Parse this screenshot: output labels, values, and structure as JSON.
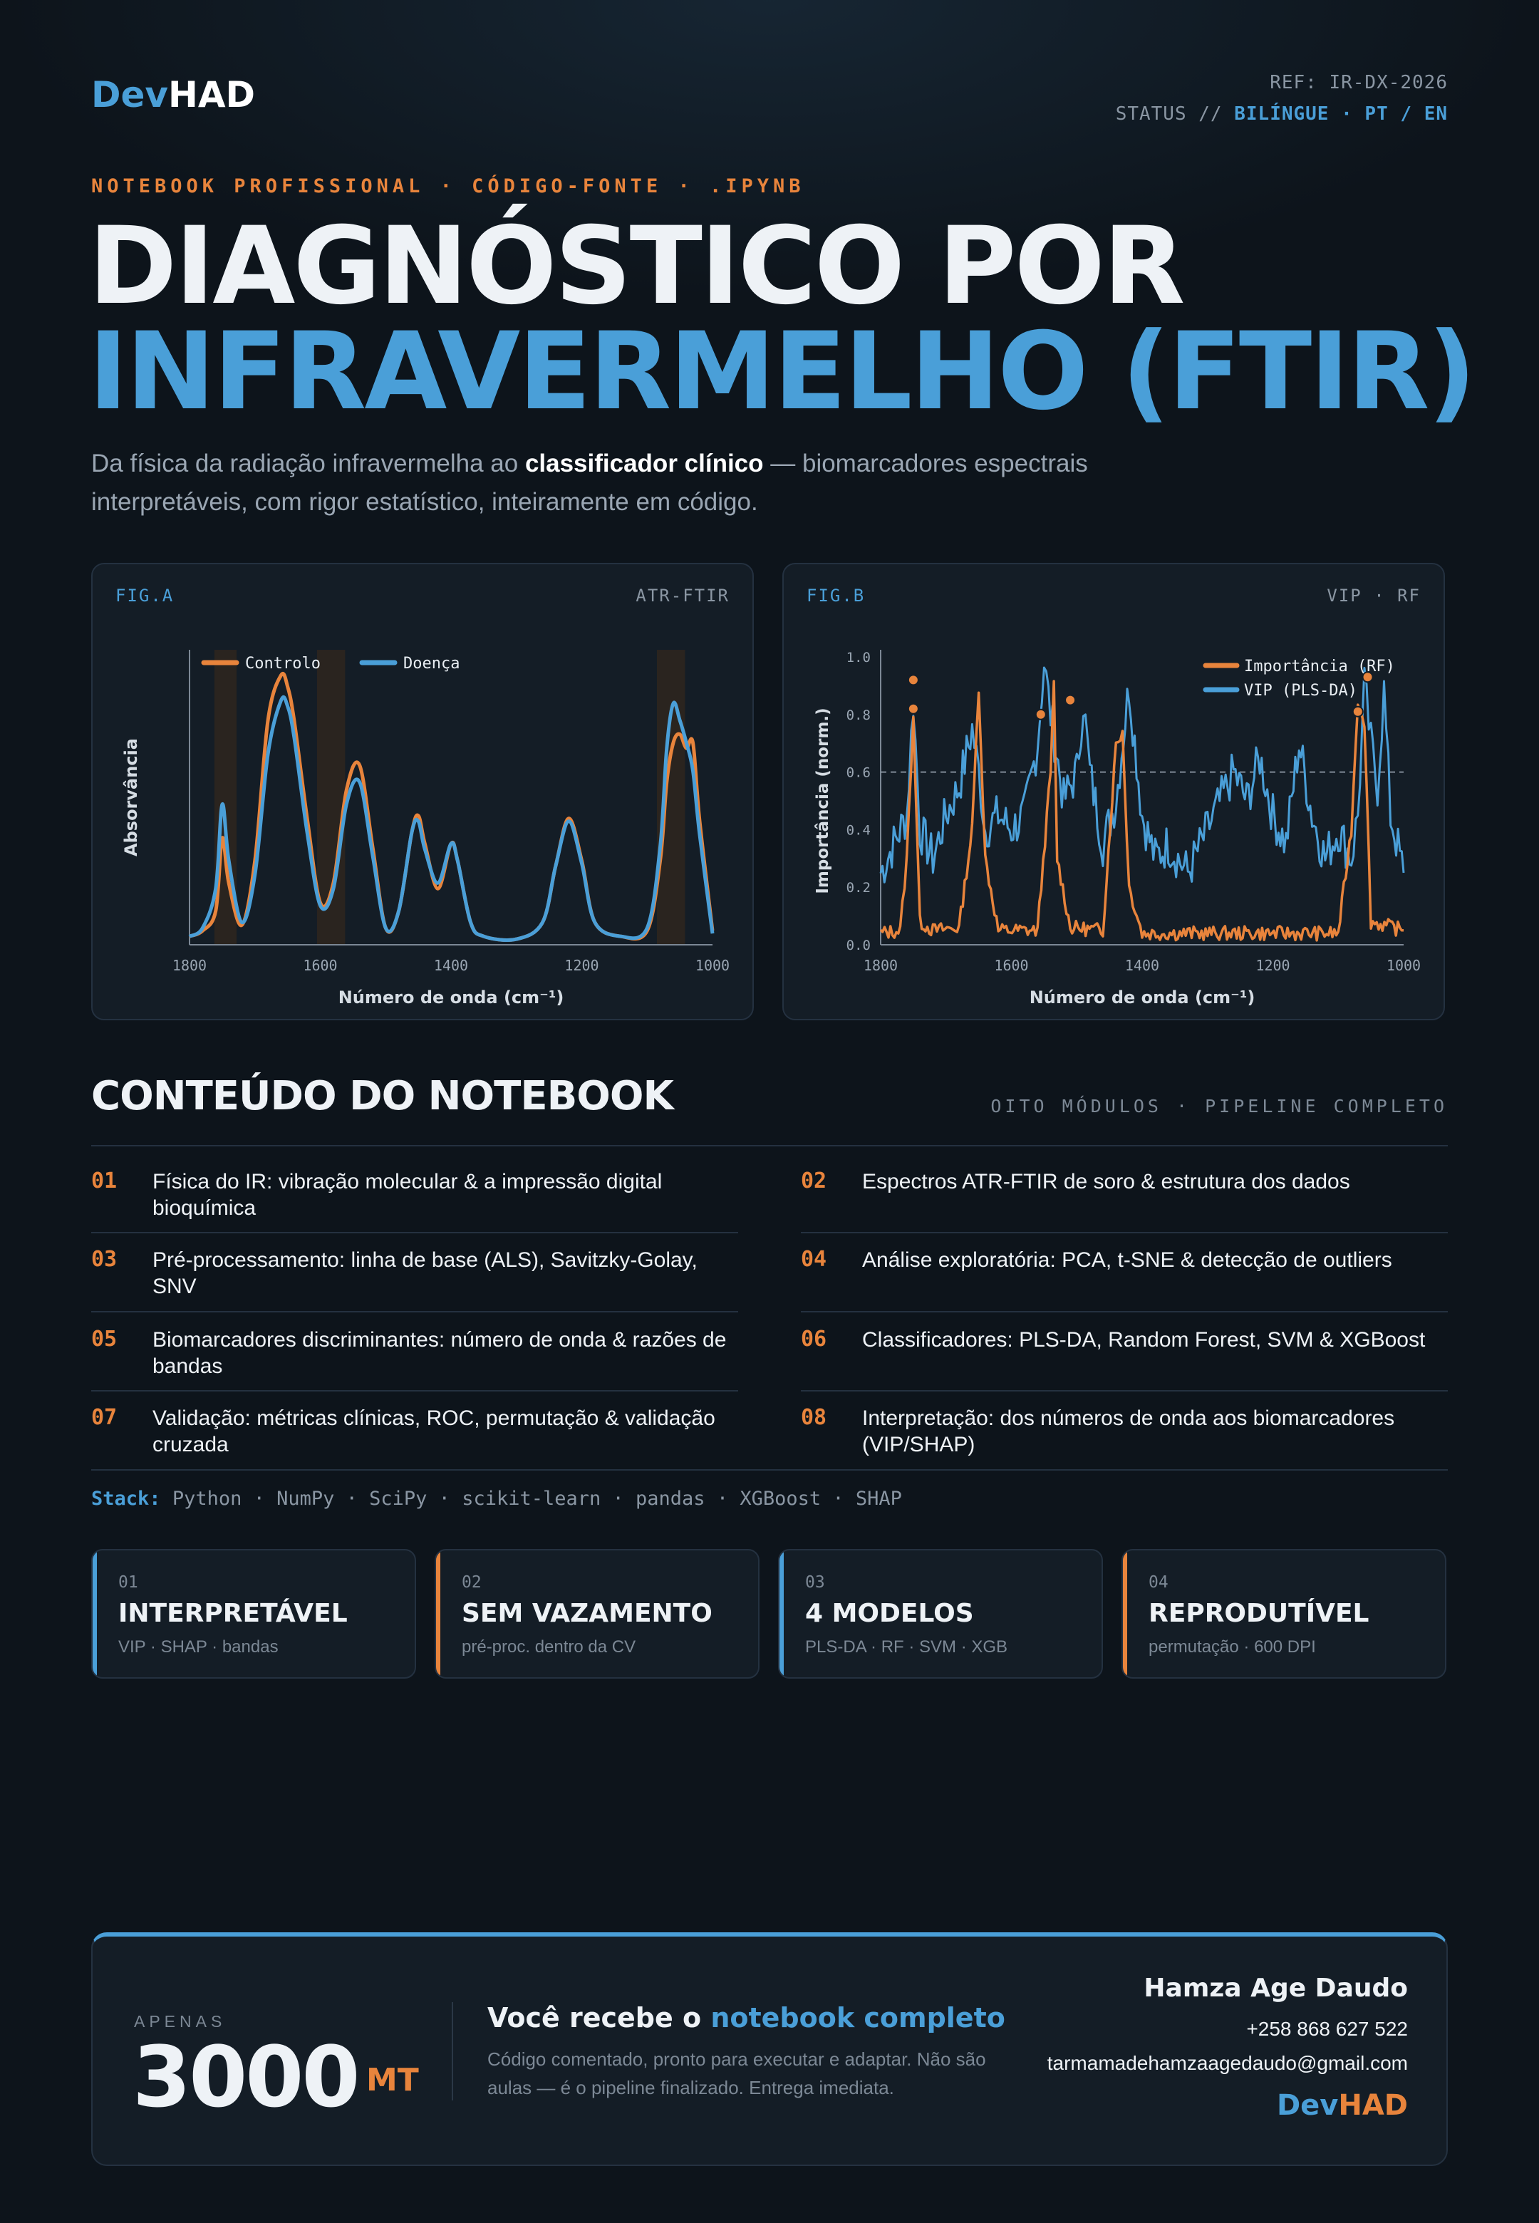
{
  "header": {
    "logo_part1": "Dev",
    "logo_part2": "HAD",
    "ref": "REF: IR-DX-2026",
    "status_label": "STATUS // ",
    "status_value": "BILÍNGUE · PT / EN"
  },
  "hero": {
    "kicker": "NOTEBOOK PROFISSIONAL · CÓDIGO-FONTE · .IPYNB",
    "title_line1": "DIAGNÓSTICO POR",
    "title_line2": "INFRAVERMELHO (FTIR)",
    "lede_a": "Da física da radiação infravermelha ao ",
    "lede_bold": "classificador clínico",
    "lede_b": " — biomarcadores espectrais interpretáveis, com rigor estatístico, inteiramente em código."
  },
  "fig_a": {
    "tag_left": "FIG.A",
    "tag_right": "ATR-FTIR"
  },
  "fig_b": {
    "tag_left": "FIG.B",
    "tag_right": "VIP · RF"
  },
  "chart_data": [
    {
      "type": "line",
      "xlabel": "Número de onda (cm⁻¹)",
      "ylabel": "Absorvância",
      "xlim": [
        1800,
        1000
      ],
      "x_reversed": true,
      "xticks": [
        1800,
        1600,
        1400,
        1200,
        1000
      ],
      "yticks": [],
      "legend": "top-left",
      "highlight_bands": [
        [
          1762,
          1728
        ],
        [
          1605,
          1562
        ],
        [
          1085,
          1042
        ]
      ],
      "x": [
        1800,
        1780,
        1760,
        1750,
        1740,
        1720,
        1700,
        1680,
        1660,
        1650,
        1640,
        1620,
        1600,
        1580,
        1560,
        1540,
        1520,
        1500,
        1480,
        1460,
        1450,
        1440,
        1420,
        1400,
        1390,
        1370,
        1350,
        1300,
        1260,
        1240,
        1220,
        1200,
        1180,
        1140,
        1100,
        1080,
        1070,
        1060,
        1050,
        1040,
        1030,
        1020,
        1000
      ],
      "series": [
        {
          "name": "Controlo",
          "color": "#e8843c",
          "values": [
            0.03,
            0.05,
            0.12,
            0.38,
            0.22,
            0.07,
            0.3,
            0.8,
            0.96,
            0.92,
            0.8,
            0.45,
            0.15,
            0.22,
            0.55,
            0.64,
            0.35,
            0.06,
            0.12,
            0.4,
            0.46,
            0.36,
            0.2,
            0.36,
            0.3,
            0.08,
            0.03,
            0.02,
            0.08,
            0.28,
            0.45,
            0.3,
            0.08,
            0.03,
            0.05,
            0.3,
            0.58,
            0.72,
            0.75,
            0.7,
            0.72,
            0.45,
            0.05
          ]
        },
        {
          "name": "Doença",
          "color": "#4a9fd8",
          "values": [
            0.03,
            0.06,
            0.2,
            0.5,
            0.3,
            0.08,
            0.25,
            0.68,
            0.87,
            0.85,
            0.74,
            0.4,
            0.14,
            0.2,
            0.5,
            0.58,
            0.32,
            0.06,
            0.12,
            0.4,
            0.44,
            0.34,
            0.22,
            0.36,
            0.3,
            0.08,
            0.03,
            0.02,
            0.08,
            0.28,
            0.44,
            0.29,
            0.08,
            0.03,
            0.06,
            0.35,
            0.7,
            0.86,
            0.8,
            0.72,
            0.62,
            0.4,
            0.04
          ]
        }
      ]
    },
    {
      "type": "line",
      "xlabel": "Número de onda (cm⁻¹)",
      "ylabel": "Importância (norm.)",
      "xlim": [
        1800,
        1000
      ],
      "x_reversed": true,
      "ylim": [
        0,
        1.0
      ],
      "xticks": [
        1800,
        1600,
        1400,
        1200,
        1000
      ],
      "yticks": [
        "0.0",
        "0.2",
        "0.4",
        "0.6",
        "0.8",
        "1.0"
      ],
      "threshold": 0.6,
      "legend": "top-right",
      "series": [
        {
          "name": "Importância (RF)",
          "color": "#e8843c",
          "x": [
            1800,
            1770,
            1760,
            1750,
            1740,
            1720,
            1680,
            1660,
            1650,
            1640,
            1620,
            1560,
            1540,
            1535,
            1530,
            1510,
            1460,
            1440,
            1430,
            1420,
            1400,
            1300,
            1100,
            1080,
            1070,
            1060,
            1050,
            1000
          ],
          "values": [
            0.04,
            0.05,
            0.3,
            0.8,
            0.08,
            0.05,
            0.06,
            0.4,
            0.9,
            0.3,
            0.05,
            0.05,
            0.6,
            0.9,
            0.3,
            0.06,
            0.05,
            0.7,
            0.74,
            0.2,
            0.04,
            0.04,
            0.04,
            0.4,
            0.85,
            0.78,
            0.08,
            0.05
          ]
        },
        {
          "name": "VIP (PLS-DA)",
          "color": "#4a9fd8",
          "x": [
            1800,
            1780,
            1760,
            1750,
            1740,
            1720,
            1700,
            1680,
            1660,
            1650,
            1640,
            1620,
            1600,
            1580,
            1560,
            1550,
            1540,
            1520,
            1500,
            1490,
            1480,
            1460,
            1440,
            1420,
            1400,
            1380,
            1360,
            1330,
            1300,
            1260,
            1240,
            1220,
            1200,
            1180,
            1160,
            1140,
            1120,
            1100,
            1080,
            1070,
            1060,
            1050,
            1040,
            1030,
            1020,
            1000
          ],
          "values": [
            0.25,
            0.35,
            0.45,
            0.85,
            0.4,
            0.3,
            0.45,
            0.55,
            0.75,
            0.6,
            0.4,
            0.45,
            0.4,
            0.45,
            0.7,
            0.98,
            0.8,
            0.5,
            0.6,
            0.85,
            0.6,
            0.35,
            0.5,
            0.9,
            0.45,
            0.3,
            0.35,
            0.25,
            0.4,
            0.6,
            0.5,
            0.65,
            0.45,
            0.35,
            0.7,
            0.45,
            0.3,
            0.4,
            0.3,
            0.45,
            0.9,
            0.7,
            0.55,
            0.88,
            0.45,
            0.25
          ]
        }
      ],
      "markers": [
        {
          "x": 1750,
          "y": 0.92
        },
        {
          "x": 1750,
          "y": 0.82
        },
        {
          "x": 1555,
          "y": 0.8
        },
        {
          "x": 1510,
          "y": 0.85
        },
        {
          "x": 1070,
          "y": 0.81
        },
        {
          "x": 1055,
          "y": 0.93
        }
      ]
    }
  ],
  "modules": {
    "title": "CONTEÚDO DO NOTEBOOK",
    "subtitle": "OITO MÓDULOS · PIPELINE COMPLETO",
    "items": [
      {
        "num": "01",
        "text": "Física do IR: vibração molecular & a impressão digital bioquímica"
      },
      {
        "num": "02",
        "text": "Espectros ATR-FTIR de soro & estrutura dos dados"
      },
      {
        "num": "03",
        "text": "Pré-processamento: linha de base (ALS), Savitzky-Golay, SNV"
      },
      {
        "num": "04",
        "text": "Análise exploratória: PCA, t-SNE & detecção de outliers"
      },
      {
        "num": "05",
        "text": "Biomarcadores discriminantes: número de onda & razões de bandas"
      },
      {
        "num": "06",
        "text": "Classificadores: PLS-DA, Random Forest, SVM & XGBoost"
      },
      {
        "num": "07",
        "text": "Validação: métricas clínicas, ROC, permutação & validação cruzada"
      },
      {
        "num": "08",
        "text": "Interpretação: dos números de onda aos biomarcadores (VIP/SHAP)"
      }
    ]
  },
  "stack": {
    "label": "Stack:",
    "items": "Python · NumPy · SciPy · scikit-learn · pandas · XGBoost · SHAP"
  },
  "features": [
    {
      "num": "01",
      "title": "INTERPRETÁVEL",
      "sub": "VIP · SHAP · bandas",
      "accent": "#4a9fd8"
    },
    {
      "num": "02",
      "title": "SEM VAZAMENTO",
      "sub": "pré-proc. dentro da CV",
      "accent": "#e8843c"
    },
    {
      "num": "03",
      "title": "4 MODELOS",
      "sub": "PLS-DA · RF · SVM · XGB",
      "accent": "#4a9fd8"
    },
    {
      "num": "04",
      "title": "REPRODUTÍVEL",
      "sub": "permutação · 600 DPI",
      "accent": "#e8843c"
    }
  ],
  "pricing": {
    "label": "APENAS",
    "value": "3000",
    "currency": "MT",
    "headline_a": "Você recebe o ",
    "headline_hl": "notebook completo",
    "description": "Código comentado, pronto para executar e adaptar. Não são aulas — é o pipeline finalizado. Entrega imediata."
  },
  "contact": {
    "name": "Hamza Age Daudo",
    "phone": "+258 868 627 522",
    "email": "tarmamadehamzaagedaudo@gmail.com",
    "logo_part1": "Dev",
    "logo_part2": "HAD"
  },
  "colors": {
    "background": "#0d141b",
    "panel": "#141d26",
    "accent_blue": "#4a9fd8",
    "accent_orange": "#e8843c"
  }
}
